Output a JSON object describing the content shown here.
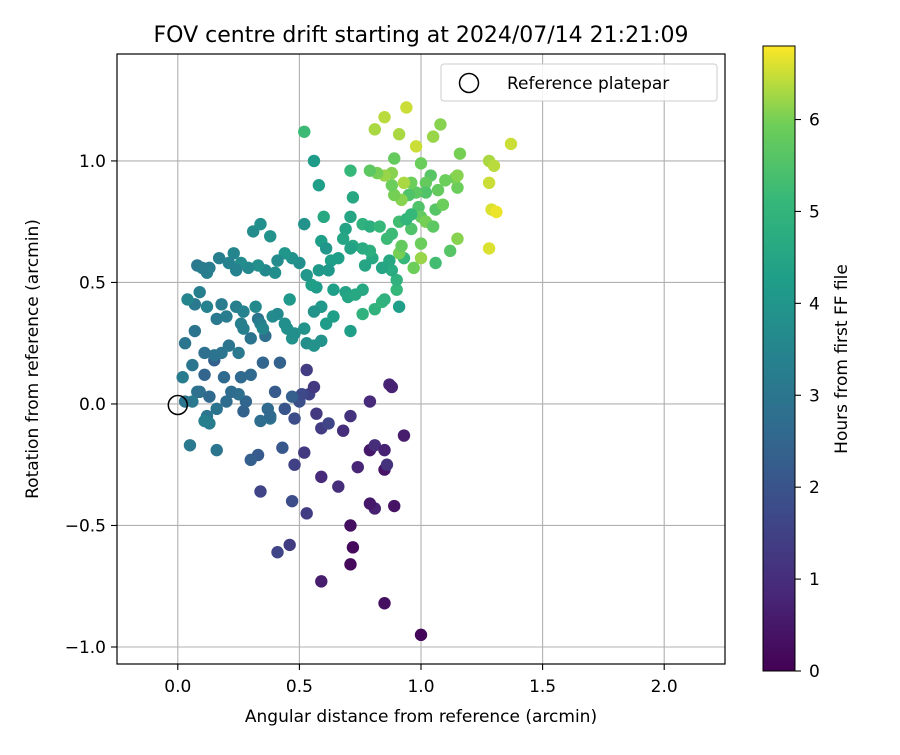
{
  "chart_data": {
    "type": "scatter",
    "title": "FOV centre drift starting at 2024/07/14 21:21:09",
    "xlabel": "Angular distance from reference (arcmin)",
    "ylabel": "Rotation from reference (arcmin)",
    "xlim": [
      -0.25,
      2.25
    ],
    "ylim": [
      -1.07,
      1.44
    ],
    "xticks": [
      0.0,
      0.5,
      1.0,
      1.5,
      2.0
    ],
    "xtick_labels": [
      "0.0",
      "0.5",
      "1.0",
      "1.5",
      "2.0"
    ],
    "yticks": [
      -1.0,
      -0.5,
      0.0,
      0.5,
      1.0
    ],
    "ytick_labels": [
      "−1.0",
      "−0.5",
      "0.0",
      "0.5",
      "1.0"
    ],
    "grid": true,
    "legend": {
      "placement": "upper-right",
      "entries": [
        {
          "label": "Reference platepar",
          "marker": "open-circle"
        }
      ]
    },
    "reference_point": {
      "x": 0.0,
      "y": 0.0
    },
    "colorbar": {
      "label": "Hours from first FF file",
      "colormap": "viridis",
      "range": [
        0,
        6.8
      ],
      "ticks": [
        0,
        1,
        2,
        3,
        4,
        5,
        6
      ],
      "tick_labels": [
        "0",
        "1",
        "2",
        "3",
        "4",
        "5",
        "6"
      ]
    },
    "points": [
      [
        1.0,
        -0.95,
        0.1
      ],
      [
        0.85,
        -0.82,
        0.3
      ],
      [
        0.59,
        -0.73,
        0.6
      ],
      [
        0.71,
        -0.66,
        0.2
      ],
      [
        0.72,
        -0.59,
        0.2
      ],
      [
        0.71,
        -0.5,
        0.3
      ],
      [
        0.81,
        -0.43,
        0.7
      ],
      [
        0.79,
        -0.41,
        0.5
      ],
      [
        0.89,
        -0.42,
        0.4
      ],
      [
        0.53,
        -0.45,
        1.4
      ],
      [
        0.66,
        -0.34,
        1.0
      ],
      [
        0.59,
        -0.3,
        0.9
      ],
      [
        0.85,
        -0.27,
        0.4
      ],
      [
        0.86,
        -0.25,
        1.1
      ],
      [
        0.74,
        -0.26,
        0.8
      ],
      [
        0.79,
        -0.19,
        0.5
      ],
      [
        0.81,
        -0.17,
        1.0
      ],
      [
        0.85,
        -0.19,
        0.7
      ],
      [
        0.93,
        -0.13,
        0.6
      ],
      [
        0.68,
        -0.11,
        1.0
      ],
      [
        0.59,
        -0.1,
        1.4
      ],
      [
        0.57,
        -0.04,
        1.3
      ],
      [
        0.71,
        -0.05,
        1.1
      ],
      [
        0.62,
        -0.08,
        1.6
      ],
      [
        0.52,
        -0.2,
        1.3
      ],
      [
        0.48,
        -0.25,
        1.5
      ],
      [
        0.46,
        -0.58,
        1.4
      ],
      [
        0.41,
        -0.61,
        1.6
      ],
      [
        0.47,
        -0.4,
        1.8
      ],
      [
        0.34,
        -0.36,
        1.6
      ],
      [
        0.33,
        -0.21,
        2.2
      ],
      [
        0.3,
        -0.23,
        2.3
      ],
      [
        0.43,
        -0.18,
        2.1
      ],
      [
        0.48,
        -0.06,
        1.8
      ],
      [
        0.44,
        -0.02,
        2.0
      ],
      [
        0.5,
        0.01,
        1.9
      ],
      [
        0.54,
        0.04,
        1.5
      ],
      [
        0.56,
        0.07,
        1.3
      ],
      [
        0.53,
        0.14,
        1.4
      ],
      [
        0.51,
        0.04,
        1.7
      ],
      [
        0.79,
        0.01,
        0.9
      ],
      [
        0.87,
        0.08,
        0.8
      ],
      [
        0.88,
        0.07,
        0.7
      ],
      [
        0.47,
        0.03,
        2.3
      ],
      [
        0.37,
        -0.02,
        2.6
      ],
      [
        0.34,
        -0.07,
        2.7
      ],
      [
        0.38,
        -0.06,
        2.9
      ],
      [
        0.38,
        -0.05,
        2.6
      ],
      [
        0.27,
        -0.03,
        2.4
      ],
      [
        0.28,
        0.01,
        2.5
      ],
      [
        0.25,
        0.04,
        2.8
      ],
      [
        0.2,
        0.01,
        2.7
      ],
      [
        0.19,
        0.11,
        2.6
      ],
      [
        0.15,
        0.18,
        2.3
      ],
      [
        0.11,
        0.12,
        2.5
      ],
      [
        0.08,
        0.05,
        2.9
      ],
      [
        0.06,
        0.01,
        3.1
      ],
      [
        0.03,
        0.01,
        3.0
      ],
      [
        0.02,
        0.11,
        3.2
      ],
      [
        0.06,
        0.16,
        3.0
      ],
      [
        0.09,
        0.05,
        2.8
      ],
      [
        0.12,
        -0.05,
        3.0
      ],
      [
        0.13,
        0.03,
        2.6
      ],
      [
        0.16,
        -0.02,
        2.9
      ],
      [
        0.16,
        -0.19,
        3.0
      ],
      [
        0.13,
        -0.08,
        3.2
      ],
      [
        0.11,
        -0.07,
        3.3
      ],
      [
        0.05,
        -0.17,
        3.1
      ],
      [
        0.22,
        0.05,
        2.7
      ],
      [
        0.26,
        0.11,
        2.6
      ],
      [
        0.3,
        0.12,
        2.6
      ],
      [
        0.35,
        0.17,
        2.5
      ],
      [
        0.42,
        0.17,
        2.4
      ],
      [
        0.4,
        0.05,
        2.2
      ],
      [
        0.36,
        0.28,
        2.8
      ],
      [
        0.33,
        0.35,
        2.9
      ],
      [
        0.3,
        0.27,
        2.9
      ],
      [
        0.25,
        0.21,
        3.1
      ],
      [
        0.21,
        0.24,
        3.0
      ],
      [
        0.18,
        0.21,
        3.0
      ],
      [
        0.15,
        0.2,
        2.9
      ],
      [
        0.11,
        0.21,
        2.8
      ],
      [
        0.07,
        0.3,
        2.9
      ],
      [
        0.03,
        0.25,
        3.0
      ],
      [
        0.07,
        0.41,
        3.1
      ],
      [
        0.04,
        0.43,
        3.5
      ],
      [
        0.09,
        0.46,
        3.3
      ],
      [
        0.12,
        0.4,
        3.4
      ],
      [
        0.16,
        0.35,
        3.1
      ],
      [
        0.18,
        0.41,
        3.2
      ],
      [
        0.2,
        0.36,
        3.2
      ],
      [
        0.24,
        0.4,
        3.3
      ],
      [
        0.27,
        0.38,
        3.4
      ],
      [
        0.26,
        0.33,
        3.3
      ],
      [
        0.27,
        0.31,
        3.3
      ],
      [
        0.32,
        0.4,
        3.6
      ],
      [
        0.34,
        0.33,
        3.3
      ],
      [
        0.35,
        0.31,
        3.5
      ],
      [
        0.39,
        0.36,
        3.7
      ],
      [
        0.41,
        0.37,
        3.6
      ],
      [
        0.44,
        0.33,
        3.8
      ],
      [
        0.46,
        0.43,
        4.1
      ],
      [
        0.45,
        0.31,
        3.8
      ],
      [
        0.47,
        0.27,
        3.9
      ],
      [
        0.48,
        0.29,
        3.8
      ],
      [
        0.52,
        0.31,
        3.9
      ],
      [
        0.53,
        0.25,
        3.8
      ],
      [
        0.56,
        0.24,
        3.9
      ],
      [
        0.59,
        0.26,
        3.9
      ],
      [
        0.61,
        0.33,
        4.2
      ],
      [
        0.64,
        0.36,
        4.3
      ],
      [
        0.59,
        0.4,
        4.1
      ],
      [
        0.56,
        0.38,
        3.9
      ],
      [
        0.64,
        0.47,
        4.3
      ],
      [
        0.69,
        0.46,
        4.4
      ],
      [
        0.7,
        0.44,
        4.5
      ],
      [
        0.73,
        0.45,
        4.6
      ],
      [
        0.71,
        0.3,
        4.3
      ],
      [
        0.76,
        0.47,
        4.6
      ],
      [
        0.76,
        0.37,
        4.9
      ],
      [
        0.81,
        0.39,
        4.9
      ],
      [
        0.84,
        0.42,
        5.0
      ],
      [
        0.85,
        0.43,
        4.9
      ],
      [
        0.9,
        0.47,
        5.1
      ],
      [
        0.91,
        0.4,
        4.3
      ],
      [
        0.9,
        0.51,
        4.9
      ],
      [
        0.88,
        0.55,
        4.7
      ],
      [
        0.87,
        0.59,
        4.6
      ],
      [
        0.84,
        0.56,
        4.5
      ],
      [
        0.8,
        0.6,
        4.6
      ],
      [
        0.77,
        0.57,
        4.5
      ],
      [
        0.79,
        0.63,
        4.8
      ],
      [
        0.76,
        0.64,
        4.7
      ],
      [
        0.72,
        0.65,
        4.6
      ],
      [
        0.69,
        0.72,
        4.4
      ],
      [
        0.71,
        0.64,
        4.4
      ],
      [
        0.68,
        0.68,
        4.5
      ],
      [
        0.66,
        0.6,
        4.3
      ],
      [
        0.63,
        0.59,
        4.3
      ],
      [
        0.62,
        0.55,
        4.1
      ],
      [
        0.58,
        0.55,
        4.1
      ],
      [
        0.57,
        0.48,
        4.2
      ],
      [
        0.55,
        0.49,
        4.3
      ],
      [
        0.53,
        0.53,
        4.0
      ],
      [
        0.5,
        0.58,
        3.8
      ],
      [
        0.47,
        0.6,
        3.9
      ],
      [
        0.44,
        0.62,
        4.0
      ],
      [
        0.41,
        0.59,
        3.7
      ],
      [
        0.4,
        0.54,
        3.8
      ],
      [
        0.36,
        0.55,
        3.6
      ],
      [
        0.33,
        0.57,
        3.8
      ],
      [
        0.29,
        0.56,
        3.6
      ],
      [
        0.26,
        0.58,
        3.7
      ],
      [
        0.23,
        0.62,
        3.5
      ],
      [
        0.21,
        0.58,
        3.4
      ],
      [
        0.17,
        0.6,
        3.3
      ],
      [
        0.13,
        0.56,
        3.2
      ],
      [
        0.12,
        0.54,
        3.3
      ],
      [
        0.08,
        0.57,
        3.1
      ],
      [
        0.1,
        0.56,
        3.2
      ],
      [
        0.24,
        0.55,
        3.4
      ],
      [
        0.31,
        0.71,
        3.7
      ],
      [
        0.34,
        0.74,
        3.8
      ],
      [
        0.38,
        0.69,
        3.9
      ],
      [
        0.52,
        0.74,
        3.9
      ],
      [
        0.59,
        0.67,
        4.3
      ],
      [
        0.61,
        0.64,
        4.0
      ],
      [
        0.6,
        0.77,
        4.6
      ],
      [
        0.71,
        0.77,
        4.5
      ],
      [
        0.72,
        0.85,
        4.6
      ],
      [
        0.76,
        0.74,
        4.9
      ],
      [
        0.79,
        0.73,
        4.8
      ],
      [
        0.83,
        0.73,
        5.1
      ],
      [
        0.86,
        0.68,
        5.2
      ],
      [
        0.88,
        0.7,
        5.2
      ],
      [
        0.91,
        0.75,
        5.3
      ],
      [
        0.96,
        0.72,
        5.5
      ],
      [
        0.99,
        0.81,
        5.5
      ],
      [
        1.0,
        0.77,
        5.8
      ],
      [
        1.02,
        0.75,
        6.0
      ],
      [
        1.05,
        0.73,
        5.7
      ],
      [
        1.06,
        0.8,
        5.6
      ],
      [
        1.09,
        0.82,
        5.9
      ],
      [
        1.0,
        0.66,
        5.9
      ],
      [
        1.0,
        0.6,
        6.2
      ],
      [
        0.97,
        0.56,
        5.9
      ],
      [
        0.93,
        0.6,
        5.1
      ],
      [
        0.91,
        0.62,
        6.0
      ],
      [
        0.92,
        0.65,
        5.8
      ],
      [
        1.06,
        0.58,
        5.3
      ],
      [
        1.12,
        0.63,
        5.6
      ],
      [
        1.15,
        0.68,
        6.1
      ],
      [
        1.28,
        0.64,
        6.6
      ],
      [
        1.29,
        0.8,
        6.6
      ],
      [
        1.31,
        0.79,
        6.7
      ],
      [
        1.28,
        0.91,
        6.5
      ],
      [
        1.28,
        1.0,
        6.3
      ],
      [
        1.3,
        0.98,
        6.4
      ],
      [
        1.15,
        0.89,
        5.9
      ],
      [
        1.14,
        0.93,
        6.0
      ],
      [
        1.15,
        0.94,
        6.1
      ],
      [
        1.1,
        0.92,
        5.9
      ],
      [
        1.07,
        0.88,
        5.8
      ],
      [
        1.04,
        0.94,
        5.6
      ],
      [
        1.02,
        0.91,
        5.8
      ],
      [
        1.02,
        0.87,
        5.5
      ],
      [
        0.98,
        0.87,
        5.7
      ],
      [
        0.96,
        0.91,
        5.9
      ],
      [
        0.95,
        0.86,
        5.5
      ],
      [
        0.92,
        0.84,
        6.1
      ],
      [
        0.89,
        0.86,
        6.0
      ],
      [
        0.88,
        0.9,
        5.9
      ],
      [
        0.88,
        0.95,
        6.1
      ],
      [
        0.85,
        0.94,
        6.2
      ],
      [
        0.82,
        0.95,
        6.0
      ],
      [
        0.79,
        0.96,
        5.7
      ],
      [
        0.71,
        0.96,
        5.1
      ],
      [
        0.89,
        1.01,
        5.8
      ],
      [
        0.93,
        0.91,
        6.3
      ],
      [
        1.0,
        0.99,
        5.9
      ],
      [
        0.91,
        1.11,
        6.3
      ],
      [
        0.85,
        1.18,
        6.4
      ],
      [
        0.81,
        1.13,
        6.3
      ],
      [
        0.94,
        1.22,
        6.5
      ],
      [
        0.98,
        1.06,
        6.5
      ],
      [
        1.05,
        1.1,
        6.2
      ],
      [
        1.08,
        1.15,
        6.1
      ],
      [
        1.16,
        1.03,
        6.0
      ],
      [
        1.37,
        1.07,
        6.5
      ],
      [
        0.52,
        1.12,
        5.2
      ],
      [
        0.56,
        1.0,
        4.2
      ],
      [
        0.58,
        0.9,
        4.3
      ],
      [
        0.94,
        0.76,
        5.0
      ],
      [
        0.96,
        0.78,
        5.1
      ]
    ]
  }
}
